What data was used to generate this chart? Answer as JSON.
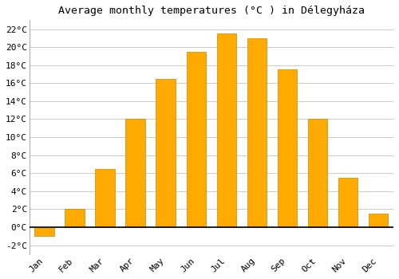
{
  "months": [
    "Jan",
    "Feb",
    "Mar",
    "Apr",
    "May",
    "Jun",
    "Jul",
    "Aug",
    "Sep",
    "Oct",
    "Nov",
    "Dec"
  ],
  "values": [
    -1.0,
    2.0,
    6.5,
    12.0,
    16.5,
    19.5,
    21.5,
    21.0,
    17.5,
    12.0,
    5.5,
    1.5
  ],
  "bar_color": "#FFAA00",
  "bar_edge_color": "#CC8800",
  "title": "Average monthly temperatures (°C ) in Délegyháza",
  "ylim": [
    -3,
    23
  ],
  "yticks": [
    -2,
    0,
    2,
    4,
    6,
    8,
    10,
    12,
    14,
    16,
    18,
    20,
    22
  ],
  "background_color": "#ffffff",
  "grid_color": "#cccccc",
  "title_fontsize": 9.5,
  "tick_fontsize": 8
}
